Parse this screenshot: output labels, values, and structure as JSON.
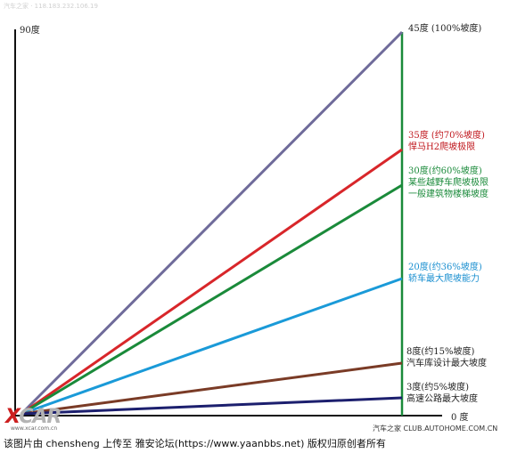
{
  "watermark_top": "汽车之家 · 118.183.232.106.19",
  "axis": {
    "top_label": "90度",
    "bottom_label": "0 度"
  },
  "lines": [
    {
      "id": "deg45",
      "color": "#6f6b9a",
      "label_color": "#222222",
      "lines": [
        "45度 (100%坡度)"
      ]
    },
    {
      "id": "deg35",
      "color": "#d8262a",
      "label_color": "#c0171d",
      "lines": [
        "35度 (约70%坡度)",
        "悍马H2爬坡极限"
      ]
    },
    {
      "id": "deg30",
      "color": "#1a8a3a",
      "label_color": "#1a8a3a",
      "lines": [
        "30度(约60%坡度)",
        "某些越野车爬坡极限",
        "一般建筑物楼梯坡度"
      ]
    },
    {
      "id": "deg20",
      "color": "#1a9ad8",
      "label_color": "#1a8fd0",
      "lines": [
        "20度(约36%坡度)",
        "轿车最大爬坡能力"
      ]
    },
    {
      "id": "deg8",
      "color": "#7a3b26",
      "label_color": "#222222",
      "lines": [
        "8度(约15%坡度)",
        "汽车库设计最大坡度"
      ]
    },
    {
      "id": "deg3",
      "color": "#1c1f6e",
      "label_color": "#222222",
      "lines": [
        "3度(约5%坡度)",
        "高速公路最大坡度"
      ]
    }
  ],
  "logo": {
    "x": "X",
    "rest": "CAR",
    "sub": "www.xcar.com.cn"
  },
  "watermark_bottom": "汽车之家 CLUB.AUTOHOME.COM.CN",
  "caption": "该图片由 chensheng 上传至 雅安论坛(https://www.yaanbbs.net) 版权归原创者所有"
}
